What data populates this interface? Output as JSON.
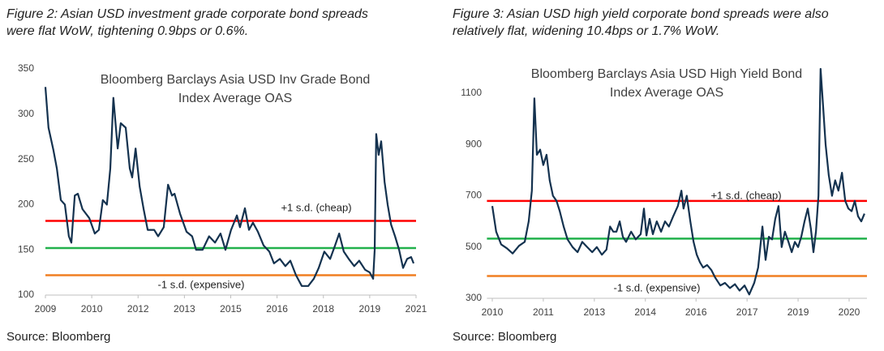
{
  "chart_data": [
    {
      "type": "line",
      "caption": [
        "Figure 2: Asian USD investment grade corporate bond spreads",
        "were flat WoW, tightening 0.9bps or 0.6%."
      ],
      "title": [
        "Bloomberg Barclays Asia USD Inv Grade Bond",
        "Index Average OAS"
      ],
      "source": "Source: Bloomberg",
      "color": "#14324f",
      "x": [
        2009.0,
        2009.1,
        2009.26,
        2009.37,
        2009.5,
        2009.63,
        2009.76,
        2009.84,
        2009.95,
        2010.05,
        2010.2,
        2010.42,
        2010.6,
        2010.73,
        2010.86,
        2010.99,
        2011.1,
        2011.2,
        2011.34,
        2011.44,
        2011.6,
        2011.73,
        2011.81,
        2011.92,
        2012.05,
        2012.18,
        2012.31,
        2012.52,
        2012.65,
        2012.83,
        2012.97,
        2013.1,
        2013.18,
        2013.36,
        2013.57,
        2013.75,
        2013.88,
        2014.09,
        2014.3,
        2014.49,
        2014.67,
        2014.83,
        2015.01,
        2015.2,
        2015.3,
        2015.46,
        2015.59,
        2015.72,
        2015.88,
        2016.06,
        2016.25,
        2016.4,
        2016.59,
        2016.77,
        2016.93,
        2017.11,
        2017.3,
        2017.51,
        2017.69,
        2017.85,
        2018.03,
        2018.22,
        2018.38,
        2018.51,
        2018.66,
        2018.82,
        2019.0,
        2019.16,
        2019.35,
        2019.5,
        2019.61,
        2019.66,
        2019.71,
        2019.79,
        2019.87,
        2019.98,
        2020.08,
        2020.19,
        2020.32,
        2020.45,
        2020.58,
        2020.71,
        2020.84,
        2020.92
      ],
      "values": [
        330,
        285,
        260,
        240,
        205,
        200,
        165,
        158,
        210,
        212,
        195,
        185,
        168,
        172,
        205,
        200,
        240,
        318,
        262,
        290,
        285,
        240,
        230,
        262,
        220,
        195,
        172,
        172,
        165,
        175,
        222,
        210,
        212,
        190,
        170,
        165,
        150,
        150,
        165,
        158,
        168,
        150,
        172,
        188,
        175,
        196,
        172,
        180,
        170,
        155,
        148,
        135,
        140,
        132,
        138,
        122,
        110,
        110,
        118,
        130,
        148,
        140,
        155,
        168,
        148,
        140,
        132,
        138,
        128,
        125,
        118,
        150,
        278,
        255,
        270,
        225,
        200,
        178,
        165,
        150,
        130,
        140,
        142,
        135
      ],
      "xlim": [
        2009,
        2021
      ],
      "xticks": [
        2009,
        {
          "value": 2010.5,
          "label": "2010"
        },
        2012,
        {
          "value": 2013.5,
          "label": "2013"
        },
        2015,
        {
          "value": 2016.5,
          "label": "2016"
        },
        2018,
        {
          "value": 2019.5,
          "label": "2019"
        },
        2021
      ],
      "ylim": [
        100,
        350
      ],
      "yticks": [
        100,
        150,
        200,
        250,
        300,
        350
      ],
      "reference_lines": [
        {
          "value": 182,
          "color": "#ff0000",
          "label": "+1 s.d. (cheap)"
        },
        {
          "value": 152,
          "color": "#22b14c"
        },
        {
          "value": 122,
          "color": "#f07f22",
          "label": "-1 s.d. (expensive)"
        }
      ]
    },
    {
      "type": "line",
      "caption": [
        "Figure 3: Asian USD high yield corporate bond spreads were also",
        "relatively flat, widening 10.4bps or 1.7% WoW."
      ],
      "title": [
        "Bloomberg Barclays Asia USD High Yield Bond",
        "Index Average OAS"
      ],
      "source": "Source: Bloomberg",
      "color": "#14324f",
      "x": [
        2010.0,
        2010.11,
        2010.25,
        2010.41,
        2010.57,
        2010.75,
        2010.91,
        2011.02,
        2011.11,
        2011.18,
        2011.25,
        2011.34,
        2011.43,
        2011.52,
        2011.61,
        2011.7,
        2011.8,
        2011.89,
        2012.0,
        2012.11,
        2012.25,
        2012.39,
        2012.52,
        2012.66,
        2012.8,
        2012.93,
        2013.07,
        2013.2,
        2013.3,
        2013.39,
        2013.48,
        2013.57,
        2013.66,
        2013.75,
        2013.89,
        2014.02,
        2014.16,
        2014.25,
        2014.32,
        2014.41,
        2014.5,
        2014.61,
        2014.73,
        2014.84,
        2014.95,
        2015.07,
        2015.2,
        2015.3,
        2015.36,
        2015.45,
        2015.55,
        2015.64,
        2015.73,
        2015.82,
        2015.91,
        2016.02,
        2016.14,
        2016.25,
        2016.39,
        2016.52,
        2016.66,
        2016.8,
        2016.93,
        2017.07,
        2017.2,
        2017.34,
        2017.45,
        2017.57,
        2017.66,
        2017.75,
        2017.84,
        2017.93,
        2018.02,
        2018.11,
        2018.2,
        2018.3,
        2018.39,
        2018.48,
        2018.57,
        2018.66,
        2018.75,
        2018.84,
        2018.93,
        2019.0,
        2019.07,
        2019.14,
        2019.2,
        2019.27,
        2019.34,
        2019.43,
        2019.52,
        2019.61,
        2019.7,
        2019.8,
        2019.89,
        2019.98,
        2020.07,
        2020.16,
        2020.25,
        2020.34,
        2020.43
      ],
      "values": [
        660,
        560,
        510,
        495,
        475,
        505,
        520,
        600,
        720,
        1080,
        860,
        880,
        820,
        860,
        760,
        700,
        680,
        640,
        580,
        530,
        500,
        480,
        520,
        500,
        480,
        500,
        470,
        490,
        580,
        560,
        560,
        600,
        540,
        520,
        560,
        530,
        550,
        650,
        545,
        610,
        550,
        600,
        560,
        600,
        580,
        620,
        660,
        720,
        650,
        700,
        600,
        520,
        470,
        440,
        420,
        430,
        410,
        380,
        350,
        360,
        340,
        355,
        330,
        350,
        315,
        360,
        420,
        580,
        450,
        540,
        530,
        610,
        660,
        500,
        560,
        520,
        480,
        520,
        500,
        540,
        600,
        650,
        570,
        480,
        560,
        700,
        1195,
        1050,
        900,
        780,
        700,
        760,
        720,
        790,
        680,
        650,
        640,
        680,
        620,
        600,
        630
      ],
      "xlim": [
        2009.85,
        2020.5
      ],
      "xticks": [
        2010,
        {
          "value": 2011.43,
          "label": "2011"
        },
        {
          "value": 2012.86,
          "label": "2013"
        },
        {
          "value": 2014.29,
          "label": "2014"
        },
        {
          "value": 2015.71,
          "label": "2016"
        },
        {
          "value": 2017.14,
          "label": "2017"
        },
        {
          "value": 2018.57,
          "label": "2019"
        },
        2020
      ],
      "ylim": [
        300,
        1200
      ],
      "yticks": [
        300,
        500,
        700,
        900,
        1100
      ],
      "reference_lines": [
        {
          "value": 680,
          "color": "#ff0000",
          "label": "+1 s.d. (cheap)"
        },
        {
          "value": 533,
          "color": "#22b14c"
        },
        {
          "value": 387,
          "color": "#f07f22",
          "label": "-1 s.d. (expensive)"
        }
      ]
    }
  ]
}
